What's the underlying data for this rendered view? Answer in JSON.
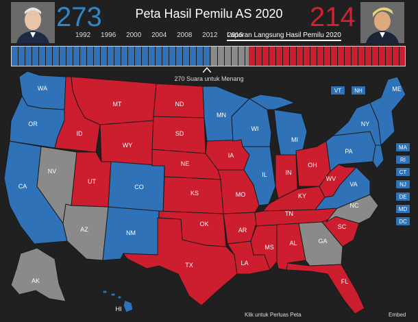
{
  "header": {
    "title": "Peta Hasil Pemilu AS 2020",
    "dem_electoral_votes": "273",
    "rep_electoral_votes": "214",
    "years": [
      "1992",
      "1996",
      "2000",
      "2004",
      "2008",
      "2012",
      "2016"
    ],
    "live_report_label": "Laporan Langsung Hasil Pemilu 2020"
  },
  "colors": {
    "dem": "#2f72b8",
    "rep": "#cc1e2e",
    "undecided": "#8a8a8a",
    "background": "#202020"
  },
  "bar": {
    "dem_votes": 273,
    "undecided_votes": 51,
    "rep_votes": 214,
    "total_votes": 538
  },
  "threshold_label": "270 Suara untuk Menang",
  "states": {
    "WA": "WA",
    "OR": "OR",
    "CA": "CA",
    "NV": "NV",
    "ID": "ID",
    "MT": "MT",
    "WY": "WY",
    "UT": "UT",
    "AZ": "AZ",
    "CO": "CO",
    "NM": "NM",
    "ND": "ND",
    "SD": "SD",
    "NE": "NE",
    "KS": "KS",
    "OK": "OK",
    "TX": "TX",
    "MN": "MN",
    "IA": "IA",
    "MO": "MO",
    "AR": "AR",
    "LA": "LA",
    "WI": "WI",
    "IL": "IL",
    "MS": "MS",
    "MI": "MI",
    "IN": "IN",
    "KY": "KY",
    "TN": "TN",
    "AL": "AL",
    "OH": "OH",
    "WV": "WV",
    "GA": "GA",
    "FL": "FL",
    "SC": "SC",
    "NC": "NC",
    "VA": "VA",
    "PA": "PA",
    "NY": "NY",
    "ME": "ME",
    "AK": "AK",
    "HI": "HI"
  },
  "small_states": [
    "VT",
    "NH",
    "MA",
    "RI",
    "CT",
    "NJ",
    "DE",
    "MD",
    "DC"
  ],
  "footer": {
    "expand": "Klik untuk Perluas Peta",
    "embed": "Embed"
  }
}
